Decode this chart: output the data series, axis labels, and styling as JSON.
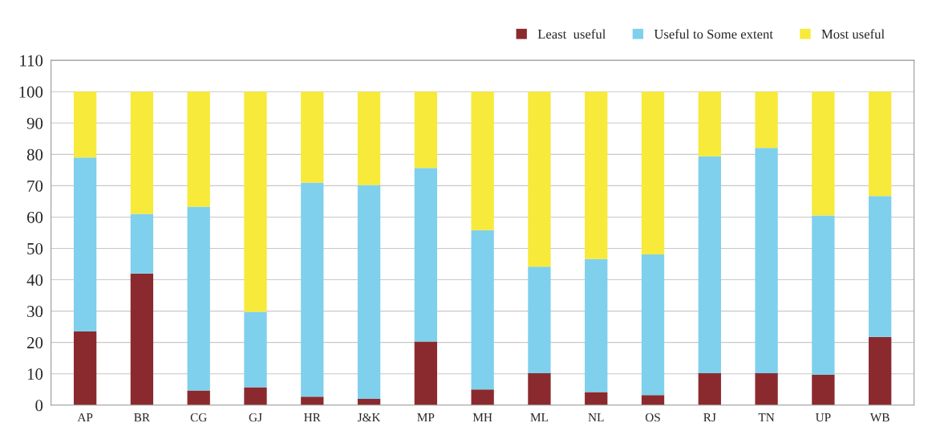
{
  "chart_data": {
    "type": "bar",
    "stacked": true,
    "categories": [
      "AP",
      "BR",
      "CG",
      "GJ",
      "HR",
      "J&K",
      "MP",
      "MH",
      "ML",
      "NL",
      "OS",
      "RJ",
      "TN",
      "UP",
      "WB"
    ],
    "series": [
      {
        "name": "Least  useful",
        "color": "#8b2a2e",
        "values": [
          23.5,
          42,
          4.7,
          5.7,
          2.7,
          2,
          20.3,
          5,
          10.2,
          4.2,
          3.2,
          10.2,
          10.2,
          9.7,
          21.8
        ]
      },
      {
        "name": "Useful to Some extent",
        "color": "#7fd0ec",
        "values": [
          55.5,
          19,
          58.6,
          24.1,
          68.3,
          68.2,
          55.4,
          50.8,
          34,
          42.4,
          44.9,
          69.2,
          71.9,
          50.8,
          44.9
        ]
      },
      {
        "name": "Most useful",
        "color": "#f7ea3a",
        "values": [
          21,
          39,
          36.7,
          70.2,
          29,
          29.8,
          24.3,
          44.2,
          55.8,
          53.4,
          51.9,
          20.6,
          17.9,
          39.5,
          33.3
        ]
      }
    ],
    "ylim": [
      0,
      110
    ],
    "yticks": [
      0,
      10,
      20,
      30,
      40,
      50,
      60,
      70,
      80,
      90,
      100,
      110
    ],
    "grid": "y",
    "legend": "top right"
  }
}
